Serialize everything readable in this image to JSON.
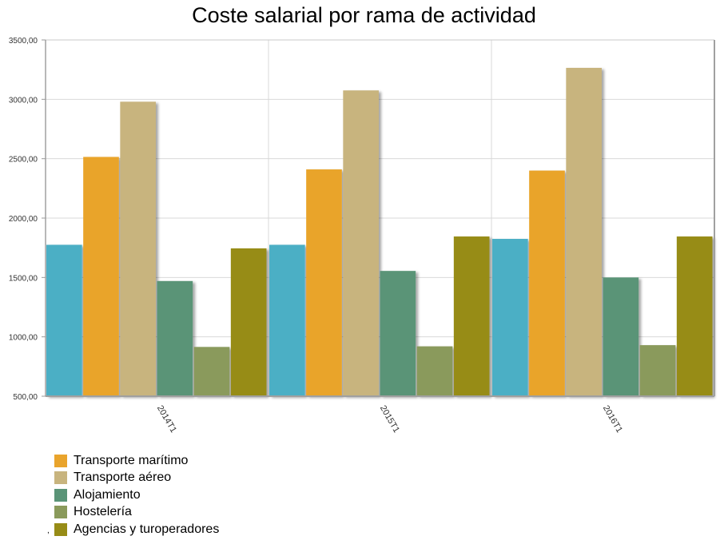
{
  "chart_data": {
    "type": "bar",
    "title": "Coste salarial por rama de actividad",
    "xlabel": "",
    "ylabel": "",
    "categories": [
      "2014T1",
      "2015T1",
      "2016T1"
    ],
    "ylim": [
      500,
      3500
    ],
    "yticks": [
      "500,00",
      "1000,00",
      "1500,00",
      "2000,00",
      "2500,00",
      "3000,00",
      "3500,00"
    ],
    "grid": true,
    "legend_position": "bottom-left",
    "series": [
      {
        "color": "#4BAFC5",
        "values": [
          1775,
          1775,
          1825
        ]
      },
      {
        "name": "Transporte marítimo",
        "color": "#E9A42C",
        "values": [
          2515,
          2410,
          2400
        ]
      },
      {
        "name": "Transporte aéreo",
        "color": "#C8B47E",
        "values": [
          2980,
          3075,
          3265
        ]
      },
      {
        "name": "Alojamiento",
        "color": "#5A9477",
        "values": [
          1470,
          1555,
          1500
        ]
      },
      {
        "name": "Hostelería",
        "color": "#8A9A5B",
        "values": [
          915,
          920,
          930
        ]
      },
      {
        "name": "Agencias y turoperadores",
        "color": "#978C17",
        "values": [
          1745,
          1845,
          1845
        ]
      }
    ]
  },
  "legend": {
    "stray_mark": ","
  }
}
